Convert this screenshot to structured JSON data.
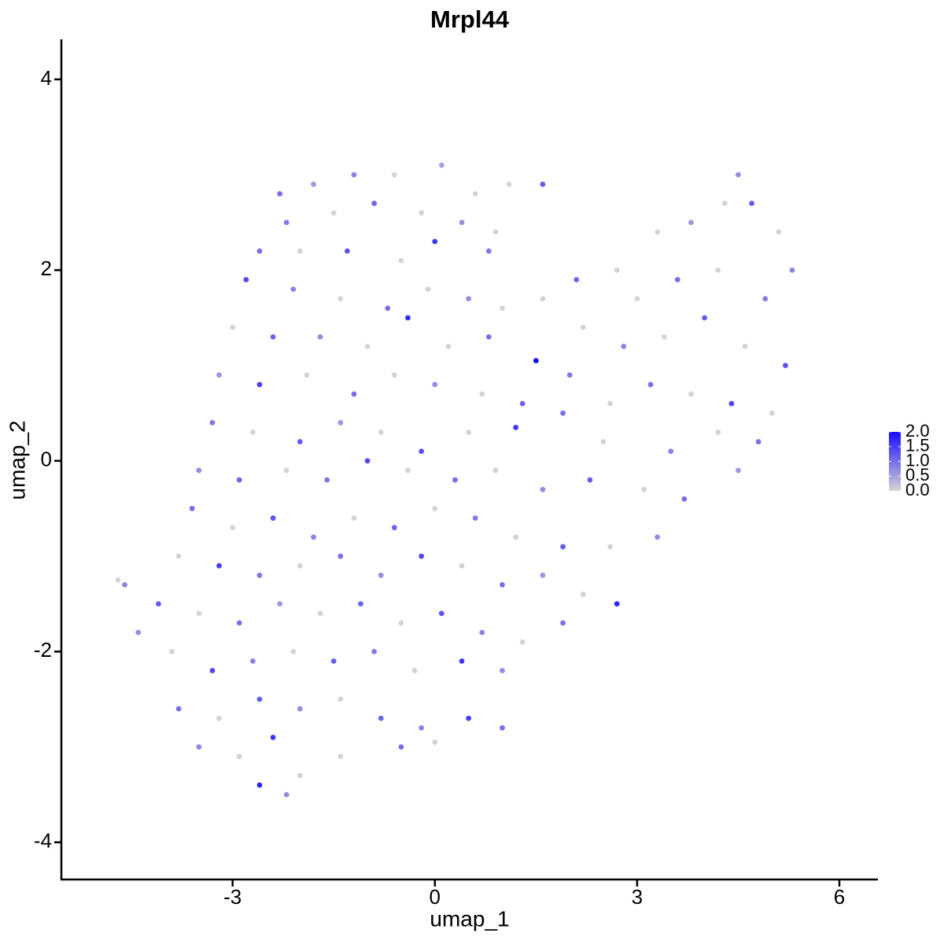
{
  "chart_data": {
    "type": "scatter",
    "title": "Mrpl44",
    "xlabel": "umap_1",
    "ylabel": "umap_2",
    "xlim": [
      -5.54,
      6.56
    ],
    "ylim": [
      -4.39,
      4.42
    ],
    "xticks": [
      -3,
      0,
      3,
      6
    ],
    "yticks": [
      -4,
      -2,
      0,
      2,
      4
    ],
    "color_low": "#d3d3d3",
    "color_high": "#1a0dff",
    "clim": [
      0,
      2
    ],
    "cticks": [
      {
        "value": 0,
        "label": "0.0"
      },
      {
        "value": 0.5,
        "label": "0.5"
      },
      {
        "value": 1,
        "label": "1.0"
      },
      {
        "value": 1.5,
        "label": "1.5"
      },
      {
        "value": 2,
        "label": "2.0"
      }
    ],
    "x": [
      -2.3,
      -1.8,
      -1.2,
      -0.6,
      0.1,
      0.6,
      1.1,
      -2.2,
      -1.5,
      -0.9,
      -0.2,
      0.4,
      0.9,
      1.6,
      -2.6,
      -2.0,
      -1.3,
      -0.5,
      0.0,
      0.8,
      -2.8,
      -2.1,
      -1.4,
      -0.7,
      -0.1,
      0.5,
      1.0,
      1.6,
      2.1,
      2.7,
      3.3,
      3.8,
      4.3,
      4.7,
      5.1,
      5.3,
      4.5,
      3.0,
      3.6,
      4.2,
      4.9,
      -3.0,
      -2.4,
      -1.7,
      -1.0,
      -0.4,
      0.2,
      0.8,
      1.5,
      2.2,
      2.8,
      3.4,
      4.0,
      4.6,
      5.2,
      -3.2,
      -2.6,
      -1.9,
      -1.2,
      -0.6,
      0.0,
      0.7,
      1.3,
      2.0,
      2.6,
      3.2,
      3.8,
      4.4,
      5.0,
      -3.3,
      -2.7,
      -2.0,
      -1.4,
      -0.8,
      -0.2,
      0.5,
      1.2,
      1.9,
      2.5,
      3.5,
      4.2,
      4.8,
      -3.5,
      -2.9,
      -2.2,
      -1.6,
      -1.0,
      -0.4,
      0.3,
      0.9,
      1.6,
      2.3,
      3.1,
      3.7,
      4.5,
      -3.6,
      -3.0,
      -2.4,
      -1.8,
      -1.2,
      -0.6,
      0.0,
      0.6,
      1.2,
      1.9,
      2.6,
      3.3,
      -3.8,
      -3.2,
      -2.6,
      -2.0,
      -1.4,
      -0.8,
      -0.2,
      0.4,
      1.0,
      1.6,
      2.2,
      2.7,
      -4.6,
      -4.1,
      -3.5,
      -2.9,
      -2.3,
      -1.7,
      -1.1,
      -0.5,
      0.1,
      0.7,
      1.3,
      1.9,
      -4.4,
      -3.9,
      -3.3,
      -2.7,
      -2.1,
      -1.5,
      -0.9,
      -0.3,
      0.4,
      1.0,
      -3.8,
      -3.2,
      -2.6,
      -2.0,
      -1.4,
      -0.8,
      -0.2,
      0.5,
      1.0,
      -3.5,
      -2.9,
      -2.4,
      -2.0,
      -2.2,
      -1.4,
      -0.5,
      0.0,
      -2.6,
      -4.7
    ],
    "y": [
      2.8,
      2.9,
      3.0,
      3.0,
      3.1,
      2.8,
      2.9,
      2.5,
      2.6,
      2.7,
      2.6,
      2.5,
      2.4,
      2.9,
      2.2,
      2.2,
      2.2,
      2.1,
      2.3,
      2.2,
      1.9,
      1.8,
      1.7,
      1.6,
      1.8,
      1.7,
      1.6,
      1.7,
      1.9,
      2.0,
      2.4,
      2.5,
      2.7,
      2.7,
      2.4,
      2.0,
      3.0,
      1.7,
      1.9,
      2.0,
      1.7,
      1.4,
      1.3,
      1.3,
      1.2,
      1.5,
      1.2,
      1.3,
      1.05,
      1.4,
      1.2,
      1.3,
      1.5,
      1.2,
      1.0,
      0.9,
      0.8,
      0.9,
      0.7,
      0.9,
      0.8,
      0.7,
      0.6,
      0.9,
      0.6,
      0.8,
      0.7,
      0.6,
      0.5,
      0.4,
      0.3,
      0.2,
      0.4,
      0.3,
      0.1,
      0.3,
      0.35,
      0.5,
      0.2,
      0.1,
      0.3,
      0.2,
      -0.1,
      -0.2,
      -0.1,
      -0.2,
      0.0,
      -0.1,
      -0.2,
      -0.1,
      -0.3,
      -0.2,
      -0.3,
      -0.4,
      -0.1,
      -0.5,
      -0.7,
      -0.6,
      -0.8,
      -0.6,
      -0.7,
      -0.5,
      -0.6,
      -0.8,
      -0.9,
      -0.9,
      -0.8,
      -1.0,
      -1.1,
      -1.2,
      -1.1,
      -1.0,
      -1.2,
      -1.0,
      -1.1,
      -1.3,
      -1.2,
      -1.4,
      -1.5,
      -1.3,
      -1.5,
      -1.6,
      -1.7,
      -1.5,
      -1.6,
      -1.5,
      -1.7,
      -1.6,
      -1.8,
      -1.9,
      -1.7,
      -1.8,
      -2.0,
      -2.2,
      -2.1,
      -2.0,
      -2.1,
      -2.0,
      -2.2,
      -2.1,
      -2.2,
      -2.6,
      -2.7,
      -2.5,
      -2.6,
      -2.5,
      -2.7,
      -2.8,
      -2.7,
      -2.8,
      -3.0,
      -3.1,
      -2.9,
      -3.3,
      -3.5,
      -3.1,
      -3.0,
      -2.95,
      -3.4,
      -1.25
    ],
    "expression": [
      1.0,
      0.6,
      0.8,
      0.0,
      0.5,
      0.0,
      0.0,
      0.9,
      0.0,
      1.1,
      0.0,
      0.7,
      0.0,
      1.2,
      1.0,
      0.0,
      1.3,
      0.0,
      1.6,
      0.9,
      1.4,
      0.8,
      0.0,
      1.0,
      0.0,
      0.7,
      0.0,
      0.0,
      1.1,
      0.0,
      0.0,
      0.6,
      0.0,
      1.2,
      0.0,
      0.8,
      0.7,
      0.0,
      1.0,
      0.0,
      0.9,
      0.0,
      1.1,
      0.7,
      0.0,
      1.7,
      0.0,
      1.0,
      2.0,
      0.0,
      0.8,
      0.0,
      1.2,
      0.0,
      1.3,
      0.6,
      1.5,
      0.0,
      1.0,
      0.0,
      0.7,
      0.0,
      1.1,
      0.9,
      0.0,
      1.0,
      0.0,
      1.4,
      0.0,
      0.9,
      0.0,
      1.2,
      0.6,
      0.0,
      1.3,
      0.0,
      1.6,
      1.0,
      0.0,
      0.8,
      0.0,
      1.0,
      0.7,
      1.1,
      0.0,
      0.9,
      1.4,
      0.0,
      1.0,
      0.0,
      0.7,
      1.2,
      0.0,
      1.0,
      0.6,
      1.0,
      0.0,
      1.3,
      0.8,
      0.0,
      1.1,
      0.0,
      0.9,
      0.0,
      1.2,
      0.0,
      0.7,
      0.0,
      1.5,
      0.9,
      0.0,
      1.0,
      0.7,
      1.4,
      0.0,
      1.0,
      0.6,
      0.0,
      1.8,
      0.8,
      1.2,
      0.0,
      1.0,
      0.6,
      0.0,
      1.1,
      0.0,
      1.3,
      0.8,
      0.0,
      1.0,
      0.7,
      0.0,
      1.4,
      0.8,
      0.0,
      1.2,
      0.9,
      0.0,
      1.6,
      0.7,
      1.0,
      0.0,
      1.2,
      0.7,
      0.0,
      1.1,
      0.8,
      1.5,
      1.0,
      0.8,
      0.0,
      1.6,
      0.0,
      0.7,
      0.0,
      1.0,
      0.0,
      1.8,
      0.0
    ]
  }
}
